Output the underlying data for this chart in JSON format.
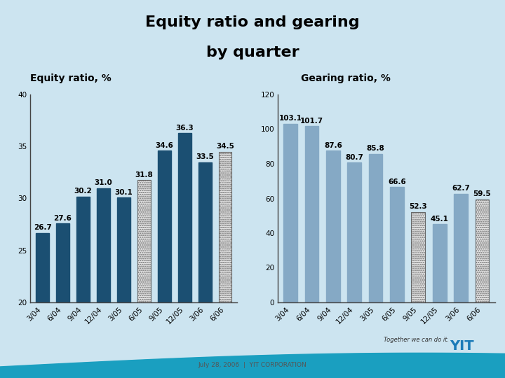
{
  "title_line1": "Equity ratio and gearing",
  "title_line2": "by quarter",
  "title_fontsize": 16,
  "bg_color": "#cce4f0",
  "equity_title": "Equity ratio, %",
  "equity_categories": [
    "3/04",
    "6/04",
    "9/04",
    "12/04",
    "3/05",
    "6/05",
    "9/05",
    "12/05",
    "3/06",
    "6/06"
  ],
  "equity_values": [
    26.7,
    27.6,
    30.2,
    31.0,
    30.1,
    31.8,
    34.6,
    36.3,
    33.5,
    34.5
  ],
  "equity_hatched": [
    false,
    false,
    false,
    false,
    false,
    true,
    false,
    false,
    false,
    true
  ],
  "equity_solid_color": "#1b4f72",
  "equity_ylim": [
    20,
    40
  ],
  "equity_yticks": [
    20,
    25,
    30,
    35,
    40
  ],
  "gearing_title": "Gearing ratio, %",
  "gearing_categories": [
    "3/04",
    "6/04",
    "9/04",
    "12/04",
    "3/05",
    "6/05",
    "9/05",
    "12/05",
    "3/06",
    "6/06"
  ],
  "gearing_values": [
    103.1,
    101.7,
    87.6,
    80.7,
    85.8,
    66.6,
    52.3,
    45.1,
    62.7,
    59.5
  ],
  "gearing_hatched": [
    false,
    false,
    false,
    false,
    false,
    false,
    true,
    false,
    false,
    true
  ],
  "gearing_solid_color": "#85a9c5",
  "gearing_ylim": [
    0,
    120
  ],
  "gearing_yticks": [
    0,
    20,
    40,
    60,
    80,
    100,
    120
  ],
  "footer_text": "July 28, 2006  |  YIT CORPORATION",
  "subtitle_fontsize": 10,
  "tick_fontsize": 7.5,
  "value_fontsize": 7.5
}
